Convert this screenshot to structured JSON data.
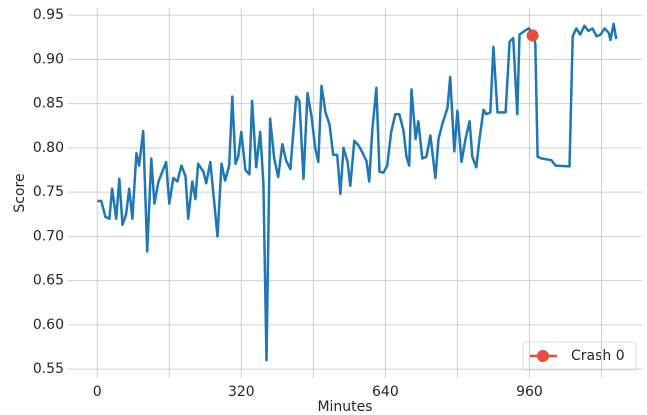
{
  "chart_data": {
    "type": "line",
    "x_label": "Minutes",
    "y_label": "Score",
    "color": "#1f77b4",
    "x": [
      0,
      9,
      18,
      27,
      33,
      42,
      49,
      56,
      64,
      71,
      78,
      87,
      93,
      102,
      111,
      120,
      127,
      136,
      153,
      160,
      169,
      178,
      187,
      196,
      202,
      211,
      218,
      224,
      236,
      242,
      251,
      258,
      267,
      276,
      284,
      293,
      300,
      307,
      313,
      320,
      329,
      338,
      344,
      353,
      362,
      369,
      376,
      384,
      393,
      402,
      411,
      420,
      429,
      442,
      449,
      458,
      467,
      476,
      484,
      491,
      498,
      507,
      516,
      524,
      533,
      540,
      547,
      556,
      562,
      571,
      580,
      589,
      598,
      604,
      611,
      620,
      627,
      636,
      644,
      653,
      662,
      671,
      680,
      687,
      693,
      698,
      707,
      713,
      722,
      731,
      740,
      751,
      758,
      767,
      778,
      784,
      793,
      800,
      809,
      818,
      827,
      833,
      842,
      849,
      858,
      864,
      873,
      880,
      889,
      898,
      907,
      916,
      924,
      933,
      938,
      949,
      958,
      967,
      973,
      978,
      987,
      1009,
      1018,
      1049,
      1056,
      1064,
      1073,
      1082,
      1091,
      1100,
      1109,
      1118,
      1127,
      1136,
      1140,
      1147,
      1153
    ],
    "values": [
      0.74,
      0.74,
      0.722,
      0.72,
      0.754,
      0.72,
      0.765,
      0.713,
      0.725,
      0.754,
      0.72,
      0.794,
      0.78,
      0.819,
      0.683,
      0.788,
      0.737,
      0.762,
      0.784,
      0.737,
      0.766,
      0.762,
      0.78,
      0.768,
      0.72,
      0.762,
      0.742,
      0.782,
      0.773,
      0.76,
      0.784,
      0.748,
      0.7,
      0.782,
      0.763,
      0.78,
      0.858,
      0.782,
      0.79,
      0.818,
      0.775,
      0.77,
      0.853,
      0.778,
      0.818,
      0.76,
      0.56,
      0.833,
      0.788,
      0.767,
      0.804,
      0.785,
      0.776,
      0.858,
      0.853,
      0.765,
      0.862,
      0.835,
      0.8,
      0.784,
      0.87,
      0.84,
      0.826,
      0.792,
      0.792,
      0.748,
      0.8,
      0.784,
      0.757,
      0.808,
      0.803,
      0.795,
      0.785,
      0.762,
      0.82,
      0.868,
      0.773,
      0.772,
      0.78,
      0.818,
      0.838,
      0.838,
      0.82,
      0.79,
      0.78,
      0.866,
      0.81,
      0.83,
      0.788,
      0.79,
      0.814,
      0.766,
      0.81,
      0.828,
      0.845,
      0.88,
      0.796,
      0.842,
      0.784,
      0.81,
      0.83,
      0.79,
      0.778,
      0.81,
      0.843,
      0.838,
      0.84,
      0.914,
      0.84,
      0.84,
      0.84,
      0.92,
      0.924,
      0.838,
      0.928,
      0.932,
      0.935,
      0.93,
      0.918,
      0.79,
      0.788,
      0.786,
      0.78,
      0.779,
      0.926,
      0.935,
      0.928,
      0.938,
      0.932,
      0.935,
      0.926,
      0.928,
      0.935,
      0.93,
      0.922,
      0.94,
      0.923
    ],
    "markers": [
      {
        "name": "Crash 0",
        "color": "#e74c3c",
        "x": [
          967
        ],
        "values": [
          0.927
        ]
      }
    ],
    "xlim": [
      -65,
      1210
    ],
    "xticks": [
      0,
      320,
      640,
      960
    ],
    "xminor": [
      160,
      480,
      800,
      1120
    ],
    "ylim": [
      0.54,
      0.958
    ],
    "yticks": [
      0.55,
      {
        "value": 0.6,
        "label": "0.60"
      },
      0.65,
      {
        "value": 0.7,
        "label": "0.70"
      },
      0.75,
      {
        "value": 0.8,
        "label": "0.80"
      },
      0.85,
      {
        "value": 0.9,
        "label": "0.90"
      },
      0.95
    ],
    "grid": true,
    "legend": "lower right"
  }
}
